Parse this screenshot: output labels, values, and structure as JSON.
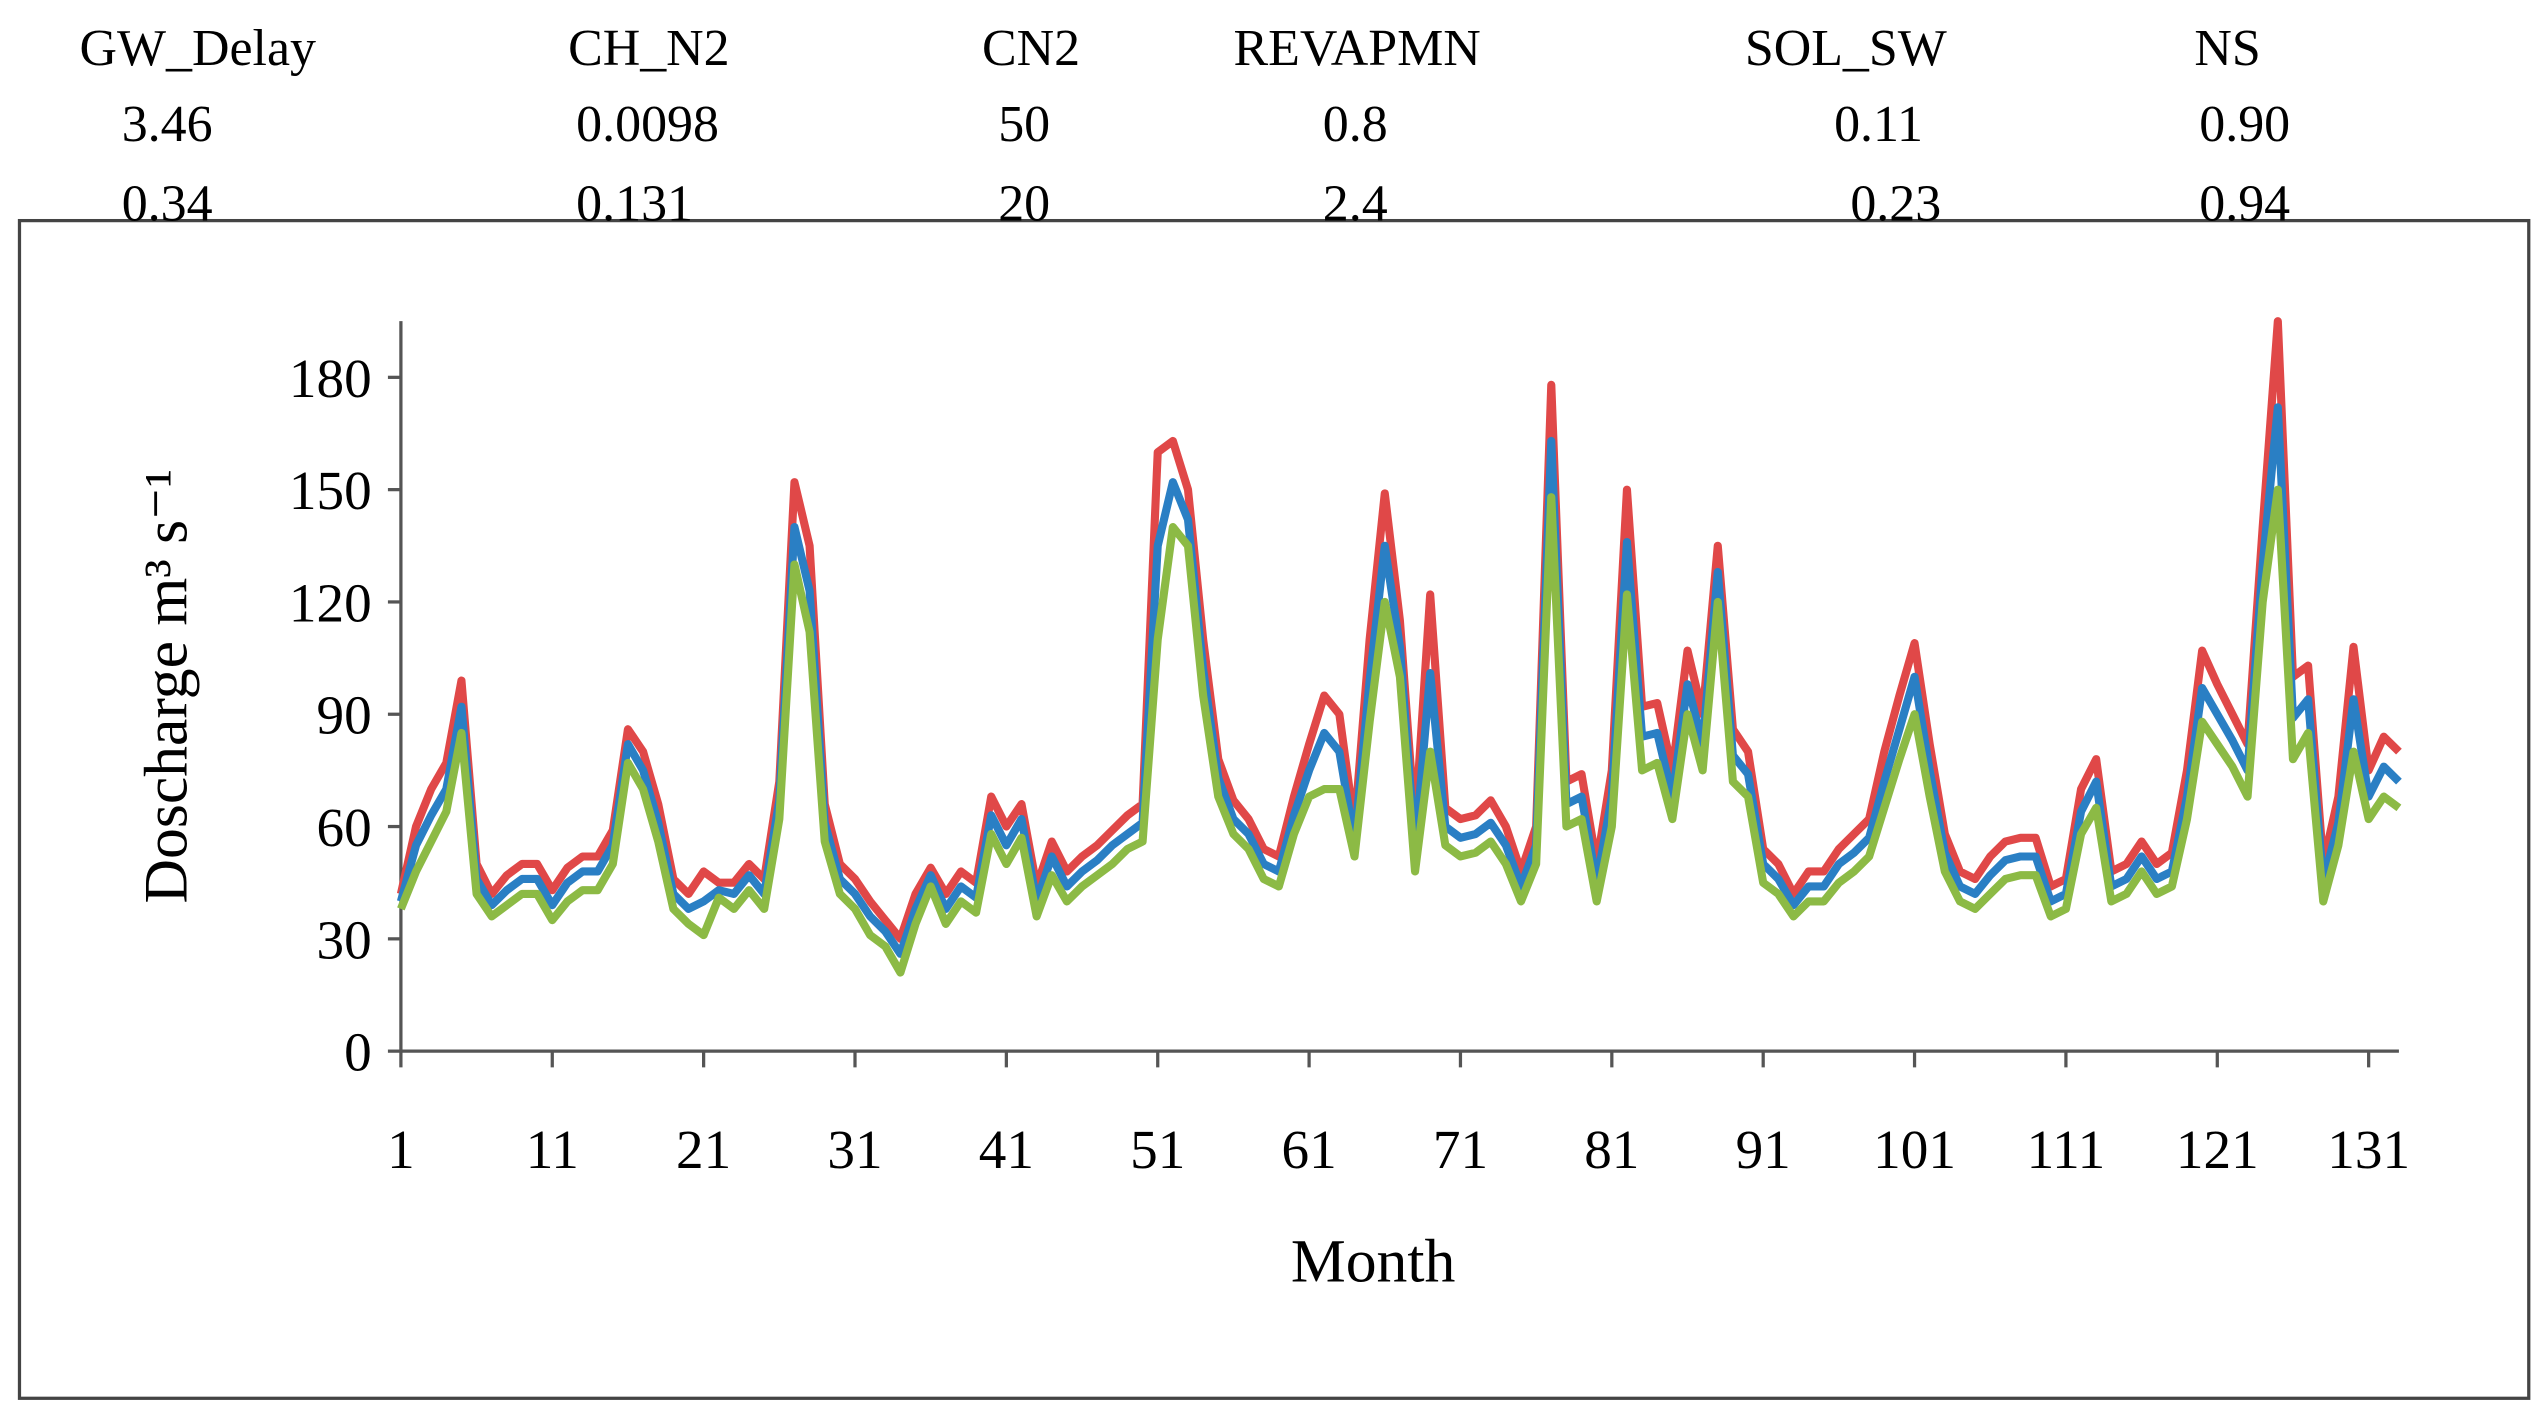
{
  "table": {
    "header": [
      "GW_Delay",
      "CH_N2",
      "CN2",
      "REVAPMN",
      "SOL_SW",
      "NS"
    ],
    "rows": [
      [
        "3.46",
        "0.0098",
        "50",
        "0.8",
        "0.11",
        "0.90"
      ],
      [
        "0.34",
        "0.131",
        "20",
        "2.4",
        "0.23",
        "0.94"
      ]
    ]
  },
  "chart_data": {
    "type": "line",
    "xlabel": "Month",
    "ylabel": "Doscharge m³ s⁻¹",
    "x": [
      1,
      2,
      3,
      4,
      5,
      6,
      7,
      8,
      9,
      10,
      11,
      12,
      13,
      14,
      15,
      16,
      17,
      18,
      19,
      20,
      21,
      22,
      23,
      24,
      25,
      26,
      27,
      28,
      29,
      30,
      31,
      32,
      33,
      34,
      35,
      36,
      37,
      38,
      39,
      40,
      41,
      42,
      43,
      44,
      45,
      46,
      47,
      48,
      49,
      50,
      51,
      52,
      53,
      54,
      55,
      56,
      57,
      58,
      59,
      60,
      61,
      62,
      63,
      64,
      65,
      66,
      67,
      68,
      69,
      70,
      71,
      72,
      73,
      74,
      75,
      76,
      77,
      78,
      79,
      80,
      81,
      82,
      83,
      84,
      85,
      86,
      87,
      88,
      89,
      90,
      91,
      92,
      93,
      94,
      95,
      96,
      97,
      98,
      99,
      100,
      101,
      102,
      103,
      104,
      105,
      106,
      107,
      108,
      109,
      110,
      111,
      112,
      113,
      114,
      115,
      116,
      117,
      118,
      119,
      120,
      121,
      122,
      123,
      124,
      125,
      126,
      127,
      128,
      129,
      130,
      131,
      132,
      133
    ],
    "series": [
      {
        "color": "#e04848",
        "values": [
          42,
          60,
          70,
          77,
          99,
          50,
          42,
          47,
          50,
          50,
          43,
          49,
          52,
          52,
          59,
          86,
          80,
          66,
          46,
          42,
          48,
          45,
          45,
          50,
          46,
          72,
          152,
          135,
          66,
          50,
          46,
          40,
          35,
          30,
          42,
          49,
          42,
          48,
          45,
          68,
          60,
          66,
          44,
          56,
          48,
          52,
          55,
          59,
          63,
          66,
          160,
          163,
          150,
          110,
          78,
          67,
          62,
          54,
          52,
          68,
          82,
          95,
          90,
          60,
          110,
          149,
          115,
          60,
          122,
          65,
          62,
          63,
          67,
          60,
          48,
          60,
          178,
          72,
          74,
          50,
          75,
          150,
          92,
          93,
          75,
          107,
          90,
          135,
          86,
          80,
          54,
          50,
          42,
          48,
          48,
          54,
          58,
          62,
          80,
          95,
          109,
          82,
          58,
          48,
          46,
          52,
          56,
          57,
          57,
          44,
          46,
          70,
          78,
          48,
          50,
          56,
          50,
          53,
          75,
          107,
          98,
          90,
          82,
          140,
          195,
          100,
          103,
          50,
          68,
          108,
          75,
          84,
          80
        ]
      },
      {
        "color": "#2a7fc4",
        "values": [
          40,
          55,
          63,
          70,
          92,
          46,
          39,
          43,
          46,
          46,
          39,
          45,
          48,
          48,
          55,
          82,
          75,
          61,
          42,
          38,
          40,
          43,
          42,
          47,
          42,
          67,
          140,
          123,
          61,
          46,
          42,
          36,
          32,
          26,
          38,
          47,
          38,
          44,
          41,
          63,
          55,
          62,
          40,
          52,
          44,
          48,
          51,
          55,
          58,
          61,
          135,
          152,
          142,
          102,
          73,
          62,
          58,
          50,
          48,
          63,
          75,
          85,
          80,
          56,
          99,
          135,
          108,
          54,
          101,
          60,
          57,
          58,
          61,
          55,
          44,
          55,
          163,
          66,
          68,
          45,
          68,
          136,
          84,
          85,
          68,
          98,
          82,
          128,
          79,
          74,
          50,
          46,
          39,
          44,
          44,
          50,
          53,
          57,
          72,
          86,
          100,
          75,
          53,
          44,
          42,
          47,
          51,
          52,
          52,
          40,
          42,
          64,
          72,
          44,
          46,
          52,
          46,
          48,
          68,
          97,
          90,
          83,
          75,
          130,
          172,
          89,
          94,
          45,
          61,
          94,
          68,
          76,
          72
        ]
      },
      {
        "color": "#8cba45",
        "values": [
          38,
          48,
          56,
          64,
          85,
          42,
          36,
          39,
          42,
          42,
          35,
          40,
          43,
          43,
          50,
          77,
          70,
          56,
          38,
          34,
          31,
          41,
          38,
          43,
          38,
          62,
          130,
          112,
          56,
          42,
          38,
          31,
          28,
          21,
          34,
          44,
          34,
          40,
          37,
          58,
          50,
          57,
          36,
          47,
          40,
          44,
          47,
          50,
          54,
          56,
          110,
          140,
          135,
          95,
          68,
          58,
          54,
          46,
          44,
          58,
          68,
          70,
          70,
          52,
          88,
          120,
          100,
          48,
          80,
          55,
          52,
          53,
          56,
          50,
          40,
          50,
          148,
          60,
          62,
          40,
          60,
          122,
          75,
          77,
          62,
          90,
          75,
          120,
          72,
          68,
          45,
          42,
          36,
          40,
          40,
          45,
          48,
          52,
          65,
          78,
          90,
          68,
          48,
          40,
          38,
          42,
          46,
          47,
          47,
          36,
          38,
          58,
          65,
          40,
          42,
          48,
          42,
          44,
          62,
          88,
          82,
          76,
          68,
          120,
          150,
          78,
          85,
          40,
          55,
          80,
          62,
          68,
          65
        ]
      }
    ],
    "xlim": [
      1,
      133
    ],
    "ylim": [
      0,
      195
    ],
    "xticks": [
      1,
      11,
      21,
      31,
      41,
      51,
      61,
      71,
      81,
      91,
      101,
      111,
      121,
      131
    ],
    "yticks": [
      0,
      30,
      60,
      90,
      120,
      150,
      180
    ]
  }
}
